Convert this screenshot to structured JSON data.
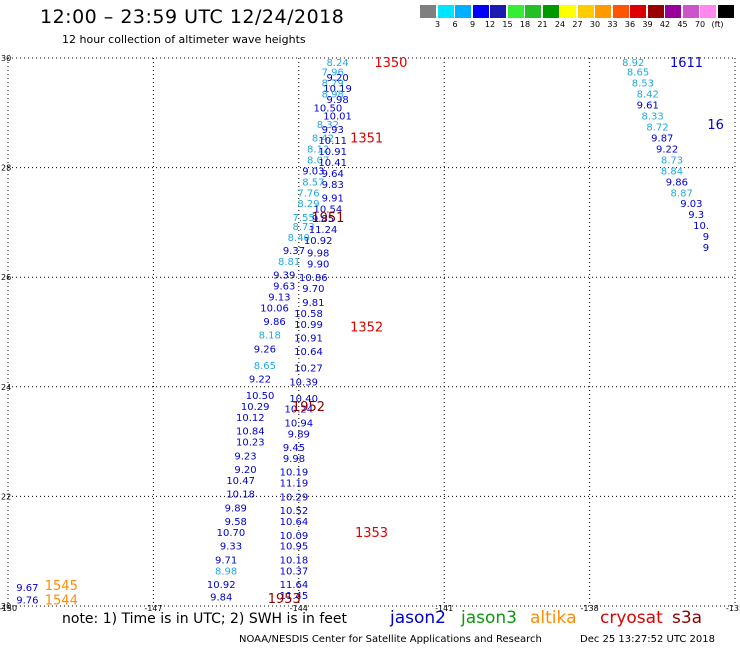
{
  "header": {
    "title": "12:00 – 23:59 UTC 12/24/2018",
    "subtitle": "12 hour collection of altimeter wave heights"
  },
  "colorbar": {
    "colors": [
      "#7f7f7f",
      "#00e5ff",
      "#00b0ff",
      "#0000ff",
      "#1b1bb0",
      "#33ee33",
      "#22c022",
      "#009900",
      "#ffff00",
      "#ffcc00",
      "#ff9900",
      "#ff5500",
      "#dd0000",
      "#990000",
      "#990099",
      "#cc55cc",
      "#ff88ee",
      "#000000"
    ],
    "labels": [
      "3",
      "6",
      "9",
      "12",
      "15",
      "18",
      "21",
      "24",
      "27",
      "30",
      "33",
      "36",
      "39",
      "42",
      "45",
      "70",
      "(ft)"
    ]
  },
  "map": {
    "lon_ticks": [
      "-150",
      "-147",
      "-144",
      "-141",
      "-138",
      "-135"
    ],
    "lat_ticks": [
      "30",
      "28",
      "26",
      "24",
      "22",
      "20"
    ],
    "colors": {
      "jason2": "#0000cc",
      "jason3": "#0a9a0a",
      "altika": "#ff8c00",
      "cryosat": "#dd0000",
      "s3a": "#8b0000",
      "grid": "#000000"
    }
  },
  "chart_data": {
    "type": "scatter",
    "title": "12:00 – 23:59 UTC 12/24/2018",
    "units": "ft",
    "lon_range": [
      -150,
      -135
    ],
    "lat_range": [
      20,
      30
    ],
    "tracks": [
      {
        "id": "track-a",
        "points": [
          {
            "lon": -143.2,
            "lat": 29.93,
            "v": "8.24",
            "c": "cyan"
          },
          {
            "lon": -143.3,
            "lat": 29.75,
            "v": "7.96",
            "c": "cyan"
          },
          {
            "lon": -143.2,
            "lat": 29.65,
            "v": "9.20",
            "c": "blue"
          },
          {
            "lon": -143.3,
            "lat": 29.55,
            "v": "8.79",
            "c": "cyan"
          },
          {
            "lon": -143.2,
            "lat": 29.45,
            "v": "10.19",
            "c": "blue"
          },
          {
            "lon": -143.3,
            "lat": 29.35,
            "v": "8.98",
            "c": "cyan"
          },
          {
            "lon": -143.2,
            "lat": 29.25,
            "v": "9.98",
            "c": "blue"
          },
          {
            "lon": -143.4,
            "lat": 29.1,
            "v": "10.50",
            "c": "blue"
          },
          {
            "lon": -143.2,
            "lat": 28.95,
            "v": "10.01",
            "c": "blue"
          },
          {
            "lon": -143.4,
            "lat": 28.8,
            "v": "8.32",
            "c": "cyan"
          },
          {
            "lon": -143.3,
            "lat": 28.7,
            "v": "9.93",
            "c": "blue"
          },
          {
            "lon": -143.5,
            "lat": 28.55,
            "v": "8.42",
            "c": "cyan"
          },
          {
            "lon": -143.3,
            "lat": 28.5,
            "v": "10.11",
            "c": "blue"
          },
          {
            "lon": -143.6,
            "lat": 28.35,
            "v": "8.12",
            "c": "cyan"
          },
          {
            "lon": -143.3,
            "lat": 28.3,
            "v": "10.91",
            "c": "blue"
          },
          {
            "lon": -143.6,
            "lat": 28.15,
            "v": "8.07",
            "c": "cyan"
          },
          {
            "lon": -143.3,
            "lat": 28.1,
            "v": "10.41",
            "c": "blue"
          },
          {
            "lon": -143.7,
            "lat": 27.95,
            "v": "9.03",
            "c": "blue"
          },
          {
            "lon": -143.3,
            "lat": 27.9,
            "v": "9.64",
            "c": "blue"
          },
          {
            "lon": -143.7,
            "lat": 27.75,
            "v": "8.57",
            "c": "cyan"
          },
          {
            "lon": -143.3,
            "lat": 27.7,
            "v": "9.83",
            "c": "blue"
          },
          {
            "lon": -143.8,
            "lat": 27.55,
            "v": "7.76",
            "c": "cyan"
          },
          {
            "lon": -143.3,
            "lat": 27.45,
            "v": "9.91",
            "c": "blue"
          },
          {
            "lon": -143.8,
            "lat": 27.35,
            "v": "8.29",
            "c": "cyan"
          },
          {
            "lon": -143.4,
            "lat": 27.25,
            "v": "10.54",
            "c": "blue"
          },
          {
            "lon": -143.9,
            "lat": 27.1,
            "v": "7.55",
            "c": "cyan"
          },
          {
            "lon": -143.5,
            "lat": 27.08,
            "v": "9.85",
            "c": "blue"
          },
          {
            "lon": -143.9,
            "lat": 26.93,
            "v": "8.73",
            "c": "cyan"
          },
          {
            "lon": -143.5,
            "lat": 26.88,
            "v": "11.24",
            "c": "blue"
          },
          {
            "lon": -144.0,
            "lat": 26.73,
            "v": "8.40",
            "c": "cyan"
          },
          {
            "lon": -143.6,
            "lat": 26.68,
            "v": "10.92",
            "c": "blue"
          },
          {
            "lon": -144.1,
            "lat": 26.5,
            "v": "9.37",
            "c": "blue"
          },
          {
            "lon": -143.6,
            "lat": 26.45,
            "v": "9.98",
            "c": "blue"
          },
          {
            "lon": -144.2,
            "lat": 26.3,
            "v": "8.81",
            "c": "cyan"
          },
          {
            "lon": -143.6,
            "lat": 26.25,
            "v": "9.90",
            "c": "blue"
          },
          {
            "lon": -144.3,
            "lat": 26.05,
            "v": "9.39",
            "c": "blue"
          },
          {
            "lon": -143.7,
            "lat": 26.0,
            "v": "10.86",
            "c": "blue"
          },
          {
            "lon": -144.3,
            "lat": 25.85,
            "v": "9.63",
            "c": "blue"
          },
          {
            "lon": -143.7,
            "lat": 25.8,
            "v": "9.70",
            "c": "blue"
          },
          {
            "lon": -144.4,
            "lat": 25.65,
            "v": "9.13",
            "c": "blue"
          },
          {
            "lon": -143.7,
            "lat": 25.55,
            "v": "9.81",
            "c": "blue"
          },
          {
            "lon": -144.5,
            "lat": 25.45,
            "v": "10.06",
            "c": "blue"
          },
          {
            "lon": -143.8,
            "lat": 25.35,
            "v": "10.58",
            "c": "blue"
          },
          {
            "lon": -144.5,
            "lat": 25.2,
            "v": "9.86",
            "c": "blue"
          },
          {
            "lon": -143.8,
            "lat": 25.15,
            "v": "10.99",
            "c": "blue"
          },
          {
            "lon": -144.6,
            "lat": 24.95,
            "v": "8.18",
            "c": "cyan"
          },
          {
            "lon": -143.8,
            "lat": 24.9,
            "v": "10.91",
            "c": "blue"
          },
          {
            "lon": -144.7,
            "lat": 24.7,
            "v": "9.26",
            "c": "blue"
          },
          {
            "lon": -143.8,
            "lat": 24.65,
            "v": "10.64",
            "c": "blue"
          },
          {
            "lon": -144.7,
            "lat": 24.4,
            "v": "8.65",
            "c": "cyan"
          },
          {
            "lon": -143.8,
            "lat": 24.35,
            "v": "10.27",
            "c": "blue"
          },
          {
            "lon": -144.8,
            "lat": 24.15,
            "v": "9.22",
            "c": "blue"
          },
          {
            "lon": -143.9,
            "lat": 24.1,
            "v": "10.39",
            "c": "blue"
          },
          {
            "lon": -144.8,
            "lat": 23.85,
            "v": "10.50",
            "c": "blue"
          },
          {
            "lon": -143.9,
            "lat": 23.8,
            "v": "10.40",
            "c": "blue"
          },
          {
            "lon": -144.9,
            "lat": 23.65,
            "v": "10.29",
            "c": "blue"
          },
          {
            "lon": -144.0,
            "lat": 23.6,
            "v": "10.24",
            "c": "blue"
          },
          {
            "lon": -145.0,
            "lat": 23.45,
            "v": "10.12",
            "c": "blue"
          },
          {
            "lon": -144.0,
            "lat": 23.35,
            "v": "10.94",
            "c": "blue"
          },
          {
            "lon": -145.0,
            "lat": 23.2,
            "v": "10.84",
            "c": "blue"
          },
          {
            "lon": -144.0,
            "lat": 23.15,
            "v": "9.89",
            "c": "blue"
          },
          {
            "lon": -145.0,
            "lat": 23.0,
            "v": "10.23",
            "c": "blue"
          },
          {
            "lon": -144.1,
            "lat": 22.9,
            "v": "9.45",
            "c": "blue"
          },
          {
            "lon": -145.1,
            "lat": 22.75,
            "v": "9.23",
            "c": "blue"
          },
          {
            "lon": -144.1,
            "lat": 22.7,
            "v": "9.98",
            "c": "blue"
          },
          {
            "lon": -145.1,
            "lat": 22.5,
            "v": "9.20",
            "c": "blue"
          },
          {
            "lon": -144.1,
            "lat": 22.45,
            "v": "10.19",
            "c": "blue"
          },
          {
            "lon": -145.2,
            "lat": 22.3,
            "v": "10.47",
            "c": "blue"
          },
          {
            "lon": -144.1,
            "lat": 22.25,
            "v": "11.19",
            "c": "blue"
          },
          {
            "lon": -145.2,
            "lat": 22.05,
            "v": "10.18",
            "c": "blue"
          },
          {
            "lon": -144.1,
            "lat": 22.0,
            "v": "10.29",
            "c": "blue"
          },
          {
            "lon": -145.3,
            "lat": 21.8,
            "v": "9.89",
            "c": "blue"
          },
          {
            "lon": -144.1,
            "lat": 21.75,
            "v": "10.52",
            "c": "blue"
          },
          {
            "lon": -145.3,
            "lat": 21.55,
            "v": "9.58",
            "c": "blue"
          },
          {
            "lon": -144.1,
            "lat": 21.55,
            "v": "10.64",
            "c": "blue"
          },
          {
            "lon": -145.4,
            "lat": 21.35,
            "v": "10.70",
            "c": "blue"
          },
          {
            "lon": -144.1,
            "lat": 21.3,
            "v": "10.09",
            "c": "blue"
          },
          {
            "lon": -145.4,
            "lat": 21.1,
            "v": "9.33",
            "c": "blue"
          },
          {
            "lon": -144.1,
            "lat": 21.1,
            "v": "10.95",
            "c": "blue"
          },
          {
            "lon": -145.5,
            "lat": 20.85,
            "v": "9.71",
            "c": "blue"
          },
          {
            "lon": -144.1,
            "lat": 20.85,
            "v": "10.18",
            "c": "blue"
          },
          {
            "lon": -145.5,
            "lat": 20.65,
            "v": "8.98",
            "c": "cyan"
          },
          {
            "lon": -144.1,
            "lat": 20.65,
            "v": "10.37",
            "c": "blue"
          },
          {
            "lon": -145.6,
            "lat": 20.4,
            "v": "10.92",
            "c": "blue"
          },
          {
            "lon": -144.1,
            "lat": 20.4,
            "v": "11.64",
            "c": "blue"
          },
          {
            "lon": -145.6,
            "lat": 20.17,
            "v": "9.84",
            "c": "blue"
          },
          {
            "lon": -144.1,
            "lat": 20.2,
            "v": "11.45",
            "c": "blue"
          }
        ]
      },
      {
        "id": "track-b",
        "points": [
          {
            "lon": -137.1,
            "lat": 29.93,
            "v": "8.92",
            "c": "cyan"
          },
          {
            "lon": -137.0,
            "lat": 29.75,
            "v": "8.65",
            "c": "cyan"
          },
          {
            "lon": -136.9,
            "lat": 29.55,
            "v": "8.53",
            "c": "cyan"
          },
          {
            "lon": -136.8,
            "lat": 29.35,
            "v": "8.42",
            "c": "cyan"
          },
          {
            "lon": -136.8,
            "lat": 29.15,
            "v": "9.61",
            "c": "blue"
          },
          {
            "lon": -136.7,
            "lat": 28.95,
            "v": "8.33",
            "c": "cyan"
          },
          {
            "lon": -136.6,
            "lat": 28.75,
            "v": "8.72",
            "c": "cyan"
          },
          {
            "lon": -136.5,
            "lat": 28.55,
            "v": "9.87",
            "c": "blue"
          },
          {
            "lon": -136.4,
            "lat": 28.35,
            "v": "9.22",
            "c": "blue"
          },
          {
            "lon": -136.3,
            "lat": 28.15,
            "v": "8.73",
            "c": "cyan"
          },
          {
            "lon": -136.3,
            "lat": 27.95,
            "v": "8.84",
            "c": "cyan"
          },
          {
            "lon": -136.2,
            "lat": 27.75,
            "v": "9.86",
            "c": "blue"
          },
          {
            "lon": -136.1,
            "lat": 27.55,
            "v": "8.87",
            "c": "cyan"
          },
          {
            "lon": -135.9,
            "lat": 27.35,
            "v": "9.03",
            "c": "blue"
          },
          {
            "lon": -135.8,
            "lat": 27.15,
            "v": "9.3",
            "c": "blue"
          },
          {
            "lon": -135.7,
            "lat": 26.95,
            "v": "10.",
            "c": "blue"
          },
          {
            "lon": -135.6,
            "lat": 26.75,
            "v": "9",
            "c": "blue"
          },
          {
            "lon": -135.6,
            "lat": 26.55,
            "v": "9",
            "c": "blue"
          }
        ]
      },
      {
        "id": "track-c",
        "points": [
          {
            "lon": -149.6,
            "lat": 20.35,
            "v": "9.67",
            "c": "blue"
          },
          {
            "lon": -149.6,
            "lat": 20.12,
            "v": "9.76",
            "c": "blue"
          }
        ]
      }
    ],
    "time_labels": [
      {
        "lon": -142.1,
        "lat": 29.93,
        "text": "1350",
        "sat": "cryosat"
      },
      {
        "lon": -142.6,
        "lat": 28.55,
        "text": "1351",
        "sat": "cryosat"
      },
      {
        "lon": -143.4,
        "lat": 27.1,
        "text": "1951",
        "sat": "s3a"
      },
      {
        "lon": -142.6,
        "lat": 25.1,
        "text": "1352",
        "sat": "cryosat"
      },
      {
        "lon": -143.8,
        "lat": 23.65,
        "text": "1952",
        "sat": "s3a"
      },
      {
        "lon": -142.5,
        "lat": 21.35,
        "text": "1353",
        "sat": "cryosat"
      },
      {
        "lon": -144.3,
        "lat": 20.15,
        "text": "1953",
        "sat": "s3a"
      },
      {
        "lon": -136.0,
        "lat": 29.93,
        "text": "1611",
        "sat": "jason2"
      },
      {
        "lon": -135.4,
        "lat": 28.8,
        "text": "16",
        "sat": "jason2"
      },
      {
        "lon": -148.9,
        "lat": 20.38,
        "text": "1545",
        "sat": "altika"
      },
      {
        "lon": -148.9,
        "lat": 20.12,
        "text": "1544",
        "sat": "altika"
      }
    ]
  },
  "footer": {
    "note": "note:  1) Time is in UTC;  2) SWH is in feet",
    "legend": [
      {
        "key": "jason2",
        "label": "jason2"
      },
      {
        "key": "jason3",
        "label": "jason3"
      },
      {
        "key": "altika",
        "label": "altika"
      },
      {
        "key": "cryosat",
        "label": "cryosat"
      },
      {
        "key": "s3a",
        "label": "s3a"
      }
    ],
    "credit": "NOAA/NESDIS Center for Satellite Applications and Research",
    "timestamp": "Dec 25 13:27:52 UTC 2018"
  }
}
